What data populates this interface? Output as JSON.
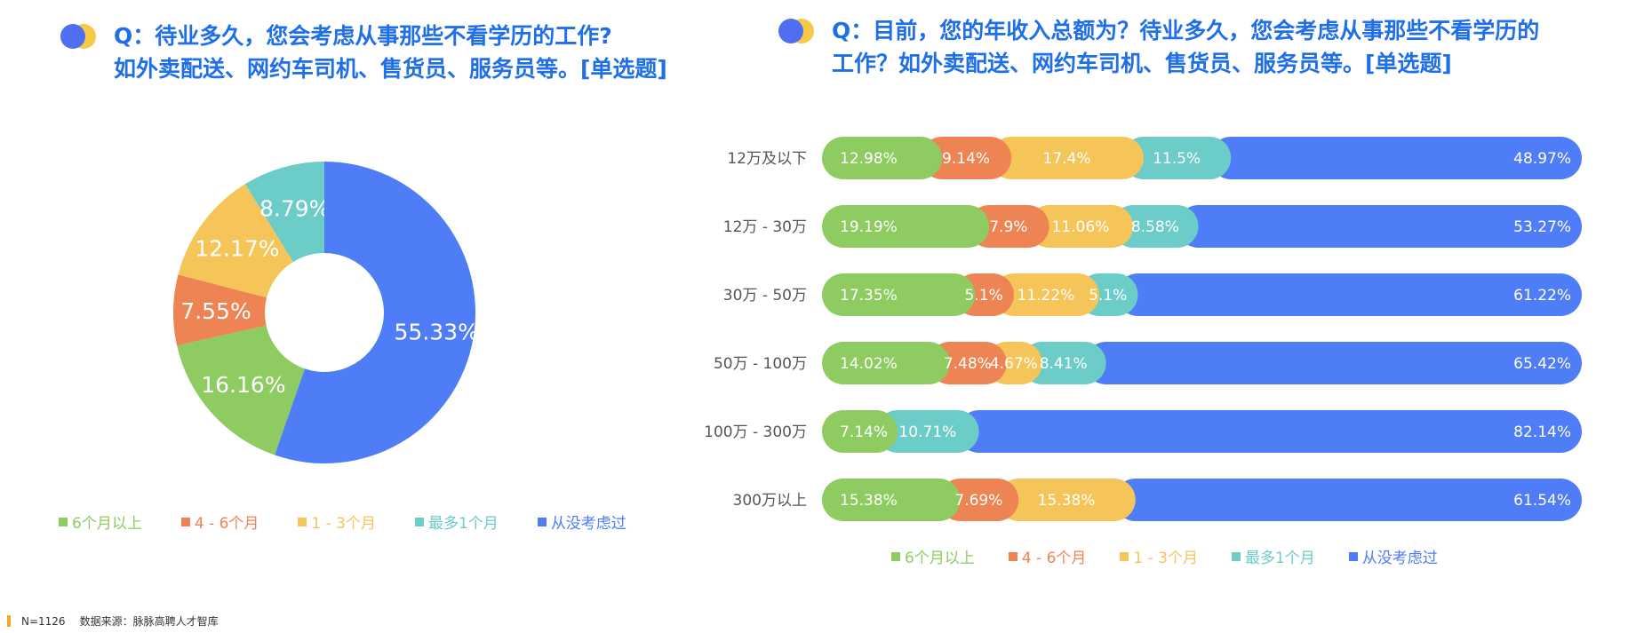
{
  "pie": {
    "title_line1": "Q：待业多久，您会考虑从事那些不看学历的工作?",
    "title_line2": "如外卖配送、网约车司机、售货员、服务员等。[单选题]"
  },
  "bar": {
    "title_line1": "Q：目前，您的年收入总额为？待业多久，您会考虑从事那些不看学历的",
    "title_line2": "工作？如外卖配送、网约车司机、售货员、服务员等。[单选题]"
  },
  "legend": [
    {
      "label": "6个月以上",
      "color": "#8ECB60"
    },
    {
      "label": "4 - 6个月",
      "color": "#EE8453"
    },
    {
      "label": "1 - 3个月",
      "color": "#F5C55A"
    },
    {
      "label": "最多1个月",
      "color": "#6CCCC8"
    },
    {
      "label": "从没考虑过",
      "color": "#4F7CF7"
    }
  ],
  "chart_data": [
    {
      "type": "pie",
      "donut": true,
      "categories": [
        "6个月以上",
        "4 - 6个月",
        "1 - 3个月",
        "最多1个月",
        "从没考虑过"
      ],
      "values": [
        16.16,
        7.55,
        12.17,
        8.79,
        55.33
      ],
      "labels": [
        "16.16%",
        "7.55%",
        "12.17%",
        "8.79%",
        "55.33%"
      ],
      "legend_position": "bottom"
    },
    {
      "type": "bar",
      "orientation": "horizontal",
      "stacked": true,
      "categories": [
        "12万及以下",
        "12万 - 30万",
        "30万 - 50万",
        "50万 - 100万",
        "100万 - 300万",
        "300万以上"
      ],
      "series": [
        {
          "name": "6个月以上",
          "values": [
            12.98,
            19.19,
            17.35,
            14.02,
            7.14,
            15.38
          ],
          "labels": [
            "12.98%",
            "19.19%",
            "17.35%",
            "14.02%",
            "7.14%",
            "15.38%"
          ]
        },
        {
          "name": "4 - 6个月",
          "values": [
            9.14,
            7.9,
            5.1,
            7.48,
            0,
            7.69
          ],
          "labels": [
            "9.14%",
            "7.9%",
            "5.1%",
            "7.48%",
            "",
            "7.69%"
          ]
        },
        {
          "name": "1 - 3个月",
          "values": [
            17.4,
            11.06,
            11.22,
            4.67,
            0,
            15.38
          ],
          "labels": [
            "17.4%",
            "11.06%",
            "11.22%",
            "4.67%",
            "",
            "15.38%"
          ]
        },
        {
          "name": "最多1个月",
          "values": [
            11.5,
            8.58,
            5.1,
            8.41,
            10.71,
            0
          ],
          "labels": [
            "11.5%",
            "8.58%",
            "5.1%",
            "8.41%",
            "10.71%",
            ""
          ]
        },
        {
          "name": "从没考虑过",
          "values": [
            48.97,
            53.27,
            61.22,
            65.42,
            82.14,
            61.54
          ],
          "labels": [
            "48.97%",
            "53.27%",
            "61.22%",
            "65.42%",
            "82.14%",
            "61.54%"
          ]
        }
      ],
      "xlim": [
        0,
        100
      ],
      "legend_position": "bottom"
    }
  ],
  "footer": {
    "sample": "N=1126",
    "source": "数据来源：脉脉高聘人才智库"
  }
}
